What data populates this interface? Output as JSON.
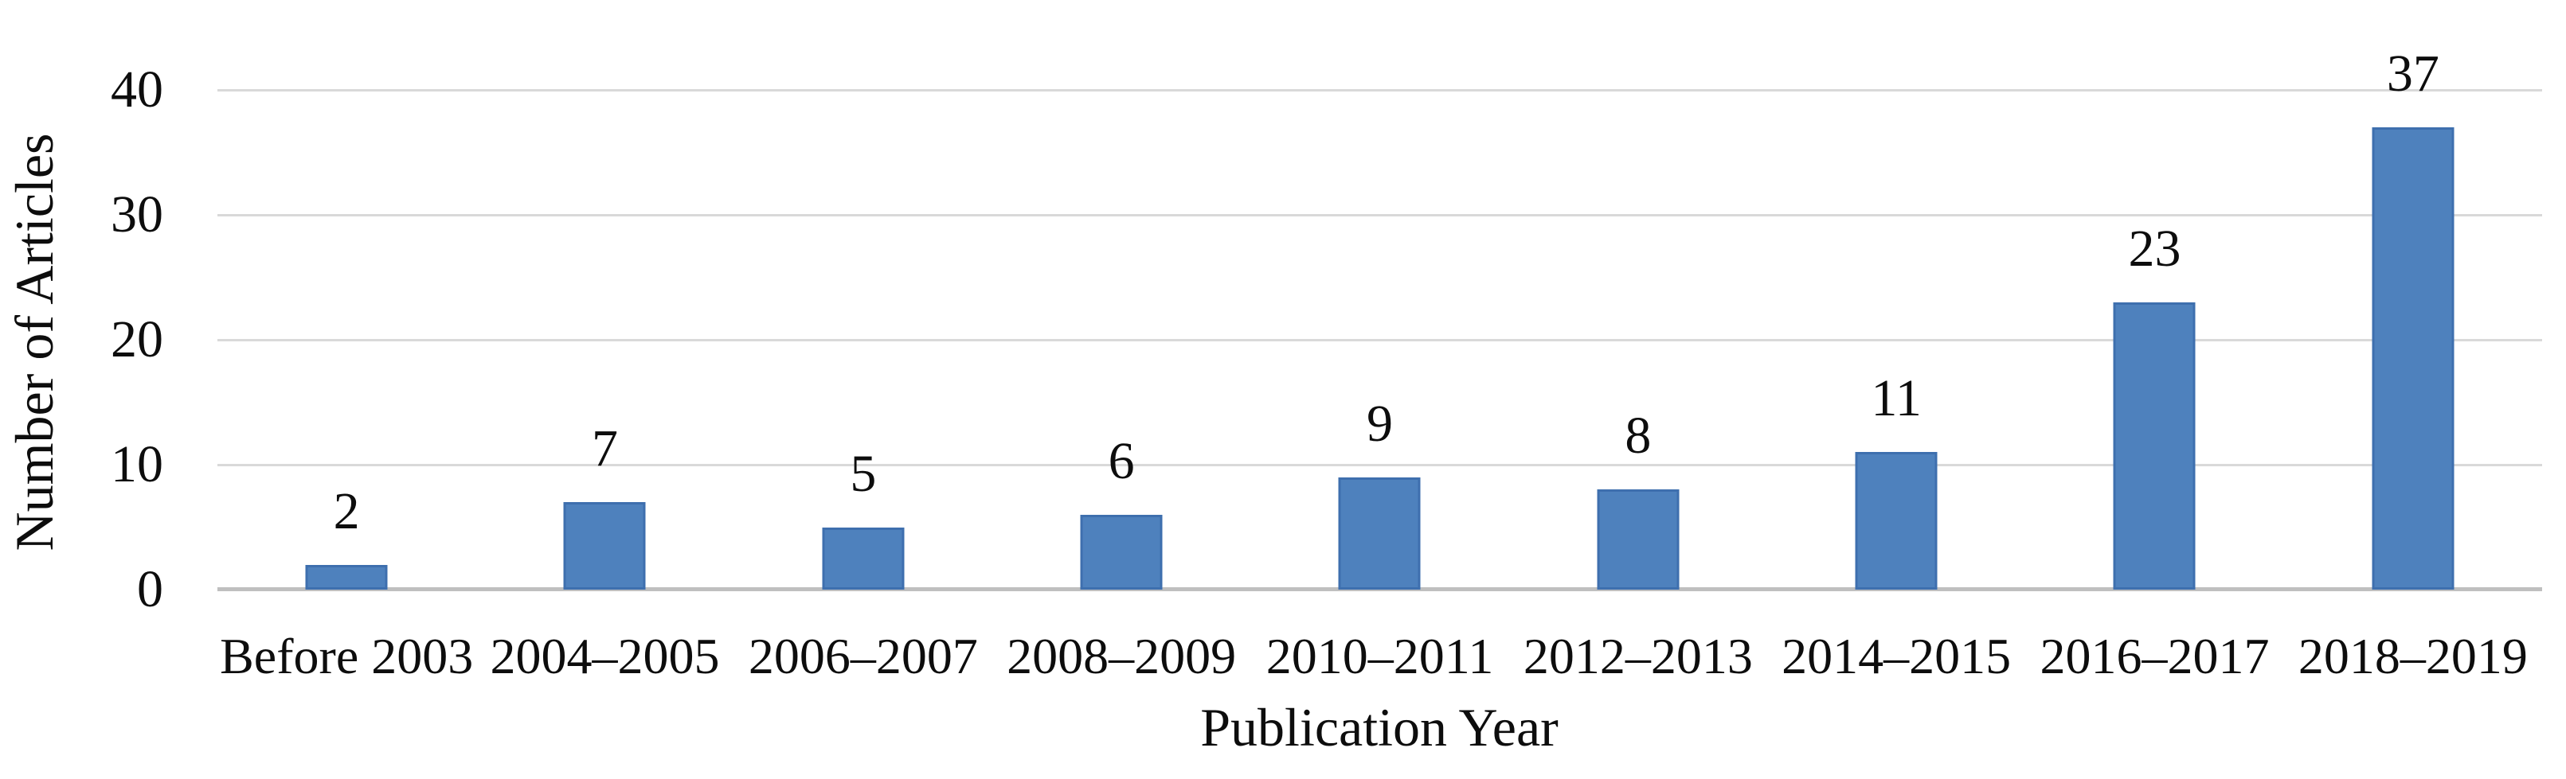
{
  "chart_data": {
    "type": "bar",
    "title": "",
    "categories": [
      "Before 2003",
      "2004–2005",
      "2006–2007",
      "2008–2009",
      "2010–2011",
      "2012–2013",
      "2014–2015",
      "2016–2017",
      "2018–2019"
    ],
    "values": [
      2,
      7,
      5,
      6,
      9,
      8,
      11,
      23,
      37
    ],
    "data_labels_shown": true,
    "xlabel": "Publication Year",
    "ylabel": "Number of Articles",
    "y_ticks": [
      0,
      10,
      20,
      30,
      40
    ],
    "ylim": [
      0,
      40
    ],
    "grid": "horizontal",
    "legend_position": "none",
    "bar_color": "#4E81BD",
    "bar_border_color": "#3E6FAE",
    "gridline_color": "#D9D9D9",
    "axis_line_color": "#BFBFBF",
    "text_color": "#0d0d0d",
    "background_color": "#ffffff"
  }
}
